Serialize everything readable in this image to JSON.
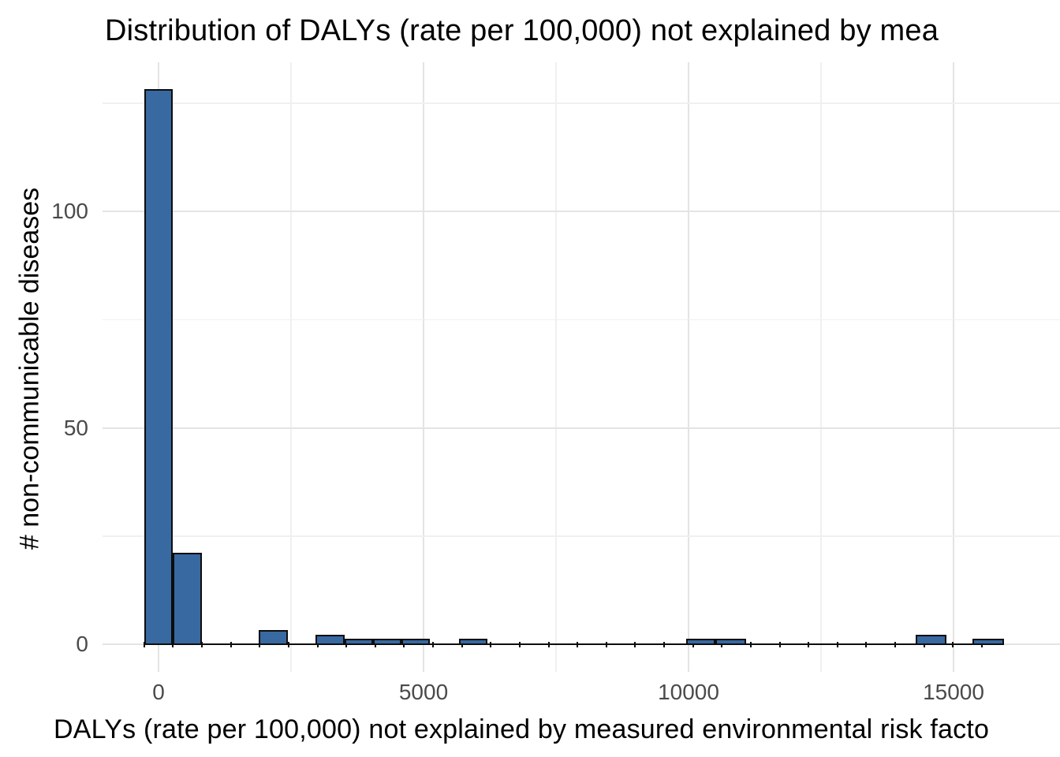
{
  "chart_data": {
    "type": "bar",
    "subtype": "histogram",
    "title": "Distribution of DALYs (rate per 100,000) not explained by mea",
    "xlabel": "DALYs (rate per 100,000) not explained by measured environmental risk facto",
    "ylabel": "# non-communicable diseases",
    "x_major_ticks": [
      0,
      5000,
      10000,
      15000
    ],
    "x_tick_labels": [
      "0",
      "5000",
      "10000",
      "15000"
    ],
    "x_minor_gridlines": [
      2500,
      7500,
      12500
    ],
    "y_major_ticks": [
      0,
      50,
      100
    ],
    "y_tick_labels": [
      "0",
      "50",
      "100"
    ],
    "y_minor_gridlines": [
      25,
      75,
      125
    ],
    "xlim": [
      -1050,
      17000
    ],
    "ylim": [
      -6.4,
      134.4
    ],
    "grid": "on",
    "legend": "none",
    "binwidth": 545,
    "baseline_extent": {
      "x0": -270,
      "x1": 15950
    },
    "bars": [
      {
        "x0": -270,
        "x1": 275,
        "count": 128
      },
      {
        "x0": 275,
        "x1": 820,
        "count": 21
      },
      {
        "x0": 1890,
        "x1": 2440,
        "count": 3
      },
      {
        "x0": 2960,
        "x1": 3510,
        "count": 2
      },
      {
        "x0": 3510,
        "x1": 4050,
        "count": 1
      },
      {
        "x0": 4050,
        "x1": 4580,
        "count": 1
      },
      {
        "x0": 4580,
        "x1": 5120,
        "count": 1
      },
      {
        "x0": 5670,
        "x1": 6210,
        "count": 1
      },
      {
        "x0": 9955,
        "x1": 10505,
        "count": 1
      },
      {
        "x0": 10505,
        "x1": 11085,
        "count": 1
      },
      {
        "x0": 14285,
        "x1": 14860,
        "count": 2
      },
      {
        "x0": 15355,
        "x1": 15950,
        "count": 1
      }
    ],
    "colors": {
      "bar_fill": "#3869A0",
      "bar_stroke": "#0d0d0d",
      "grid_major": "#e4e4e4",
      "grid_minor": "#f0f0f0",
      "tick_label": "#4a4a4a",
      "title_text": "#000000",
      "background": "#ffffff"
    }
  }
}
